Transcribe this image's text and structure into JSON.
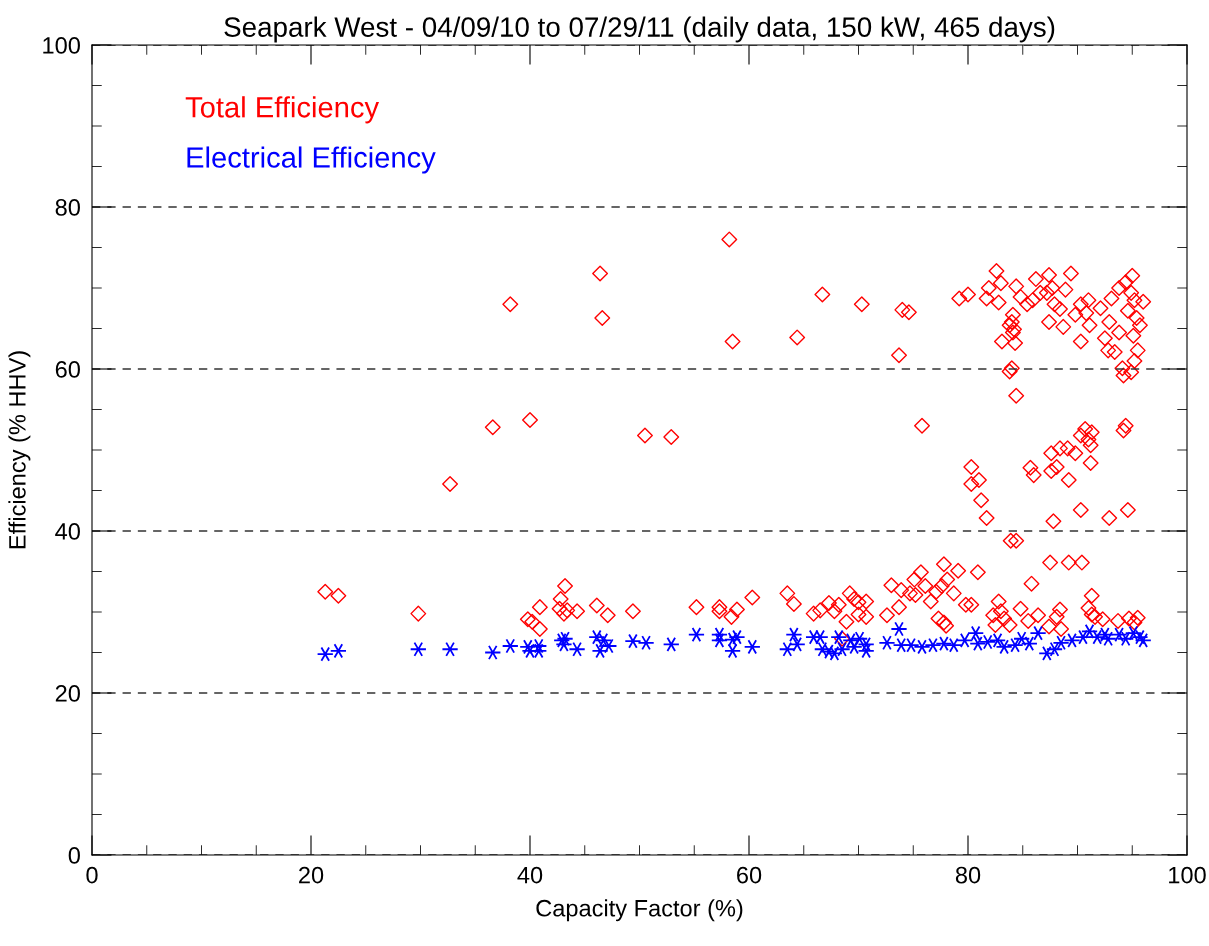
{
  "chart_data": {
    "type": "scatter",
    "title": "Seapark West - 04/09/10 to 07/29/11 (daily data, 150 kW, 465 days)",
    "xlabel": "Capacity Factor (%)",
    "ylabel": "Efficiency (% HHV)",
    "xlim": [
      0,
      100
    ],
    "ylim": [
      0,
      100
    ],
    "xticks": [
      0,
      20,
      40,
      60,
      80,
      100
    ],
    "yticks": [
      0,
      20,
      40,
      60,
      80,
      100
    ],
    "grid": "y",
    "legend": "top left",
    "series": [
      {
        "name": "Total Efficiency",
        "color": "#ff0000",
        "marker": "diamond",
        "x": [
          21.3,
          22.5,
          29.8,
          32.7,
          36.6,
          38.2,
          40.0,
          46.4,
          46.6,
          50.5,
          39.8,
          40.2,
          40.9,
          40.9,
          42.8,
          43.2,
          42.7,
          43.1,
          43.4,
          44.3,
          46.1,
          47.1,
          49.4,
          52.9,
          58.2,
          58.5,
          64.4,
          66.7,
          70.3,
          73.7,
          74.0,
          74.6,
          75.8,
          79.2,
          80.0,
          81.7,
          81.9,
          82.6,
          83.0,
          82.8,
          83.1,
          84.0,
          84.1,
          84.2,
          84.3,
          84.0,
          83.8,
          84.4,
          84.4,
          84.8,
          85.4,
          85.9,
          86.2,
          87.4,
          87.2,
          87.7,
          87.9,
          87.4,
          88.7,
          88.9,
          89.4,
          89.8,
          90.3,
          91.0,
          90.8,
          90.3,
          91.1,
          92.1,
          92.5,
          92.8,
          93.4,
          93.1,
          93.8,
          94.4,
          95.0,
          92.9,
          93.8,
          94.1,
          94.2,
          94.6,
          94.9,
          95.2,
          95.4,
          95.1,
          95.5,
          95.2,
          96.0,
          95.7,
          94.9,
          84.1,
          83.8,
          86.6,
          88.4,
          80.3,
          80.3,
          81.0,
          81.2,
          81.7,
          83.9,
          84.4,
          85.7,
          86.0,
          87.6,
          87.6,
          88.1,
          88.4,
          89.1,
          89.8,
          89.2,
          87.8,
          90.7,
          90.3,
          91.0,
          91.2,
          91.3,
          91.2,
          90.3,
          92.9,
          94.6,
          94.4,
          94.2,
          87.5,
          89.2,
          90.4,
          85.8,
          55.2,
          57.3,
          57.3,
          58.9,
          58.4,
          60.3,
          63.5,
          64.1,
          65.9,
          66.5,
          67.3,
          68.2,
          67.8,
          68.9,
          69.2,
          69.6,
          70.0,
          70.7,
          70.0,
          70.7,
          68.5,
          72.6,
          73.0,
          73.7,
          73.9,
          74.7,
          75.1,
          75.7,
          76.1,
          75.2,
          76.6,
          77.1,
          77.8,
          77.6,
          78.1,
          78.7,
          79.1,
          80.9,
          79.8,
          80.3,
          77.3,
          77.8,
          78.0,
          82.3,
          82.8,
          83.0,
          83.3,
          82.5,
          83.8,
          84.8,
          85.5,
          86.4,
          87.4,
          88.4,
          88.1,
          88.5,
          91.3,
          91.0,
          91.3,
          91.6,
          92.3,
          93.7,
          94.7,
          95.2,
          95.5
        ],
        "values": [
          32.5,
          32.0,
          29.8,
          45.8,
          52.8,
          68.0,
          53.7,
          71.8,
          66.3,
          51.8,
          29.1,
          28.8,
          30.6,
          27.9,
          31.6,
          33.2,
          30.4,
          29.8,
          30.2,
          30.1,
          30.8,
          29.6,
          30.1,
          51.6,
          76.0,
          63.4,
          63.9,
          69.2,
          68.0,
          61.7,
          67.3,
          67.0,
          53.0,
          68.7,
          69.2,
          68.7,
          70.0,
          72.1,
          70.6,
          68.2,
          63.4,
          65.8,
          66.7,
          64.9,
          63.2,
          60.1,
          59.7,
          56.7,
          70.2,
          68.9,
          68.0,
          68.5,
          71.1,
          71.6,
          69.4,
          70.0,
          68.0,
          65.8,
          65.2,
          69.8,
          71.8,
          66.7,
          68.0,
          68.5,
          66.9,
          63.4,
          65.4,
          67.5,
          63.8,
          62.3,
          62.1,
          68.7,
          70.0,
          70.7,
          71.5,
          65.8,
          64.5,
          60.1,
          59.2,
          67.2,
          69.4,
          68.5,
          66.3,
          64.1,
          62.3,
          61.0,
          68.3,
          65.4,
          59.6,
          64.5,
          65.4,
          69.4,
          67.4,
          47.9,
          45.8,
          46.3,
          43.8,
          41.6,
          38.8,
          38.8,
          47.8,
          46.9,
          49.6,
          47.4,
          47.9,
          50.2,
          50.2,
          49.6,
          46.3,
          41.2,
          52.6,
          51.8,
          51.3,
          50.6,
          52.2,
          48.4,
          42.6,
          41.6,
          42.6,
          53.0,
          52.4,
          36.1,
          36.1,
          36.1,
          33.5,
          30.6,
          30.6,
          30.1,
          30.3,
          29.4,
          31.8,
          32.3,
          31.0,
          29.8,
          30.2,
          31.1,
          30.9,
          30.1,
          28.8,
          32.3,
          31.6,
          31.2,
          31.3,
          29.7,
          29.4,
          26.7,
          29.6,
          33.3,
          30.6,
          32.7,
          32.3,
          34.0,
          34.9,
          33.2,
          32.1,
          31.3,
          32.5,
          35.9,
          33.2,
          34.0,
          32.3,
          35.1,
          34.9,
          30.9,
          30.9,
          29.2,
          28.7,
          28.3,
          29.6,
          31.3,
          30.1,
          29.2,
          28.4,
          28.4,
          30.4,
          28.9,
          29.6,
          28.2,
          30.3,
          29.4,
          27.9,
          32.0,
          30.5,
          29.7,
          29.4,
          29.1,
          28.9,
          29.2,
          28.7,
          29.3
        ]
      },
      {
        "name": "Electrical Efficiency",
        "color": "#0000ff",
        "marker": "cross",
        "x": [
          21.3,
          22.5,
          29.8,
          32.7,
          36.6,
          38.2,
          39.8,
          40.0,
          40.8,
          40.8,
          42.9,
          43.2,
          43.1,
          44.3,
          46.1,
          46.7,
          46.4,
          47.2,
          49.4,
          50.6,
          52.9,
          55.2,
          57.3,
          57.3,
          58.5,
          58.5,
          58.9,
          60.3,
          63.5,
          64.1,
          64.4,
          65.9,
          66.5,
          66.7,
          67.3,
          67.8,
          68.2,
          68.5,
          69.3,
          69.6,
          70.1,
          70.7,
          70.7,
          72.6,
          73.7,
          73.9,
          74.8,
          75.8,
          76.8,
          77.8,
          78.7,
          79.7,
          80.7,
          80.9,
          81.8,
          82.7,
          83.3,
          84.3,
          84.9,
          85.6,
          86.4,
          87.2,
          87.9,
          88.5,
          89.5,
          90.5,
          91.1,
          91.8,
          92.8,
          93.8,
          94.4,
          95.1,
          95.7,
          96.0,
          92.5
        ],
        "values": [
          24.8,
          25.2,
          25.4,
          25.4,
          25.0,
          25.8,
          25.7,
          25.2,
          25.8,
          25.2,
          26.5,
          26.7,
          26.0,
          25.4,
          26.9,
          26.5,
          25.2,
          25.8,
          26.4,
          26.2,
          26.0,
          27.2,
          27.2,
          26.5,
          26.6,
          25.2,
          26.9,
          25.7,
          25.4,
          27.2,
          26.0,
          26.9,
          26.9,
          25.4,
          25.1,
          24.9,
          26.9,
          25.4,
          26.5,
          25.7,
          26.7,
          26.0,
          25.2,
          26.2,
          27.9,
          25.9,
          25.9,
          25.7,
          25.9,
          26.1,
          25.9,
          26.5,
          27.4,
          26.1,
          26.3,
          26.5,
          25.7,
          25.9,
          26.7,
          26.1,
          27.4,
          24.9,
          25.4,
          26.2,
          26.5,
          26.9,
          27.6,
          26.9,
          26.7,
          27.2,
          26.7,
          27.4,
          26.9,
          26.5,
          27.2
        ]
      }
    ]
  }
}
